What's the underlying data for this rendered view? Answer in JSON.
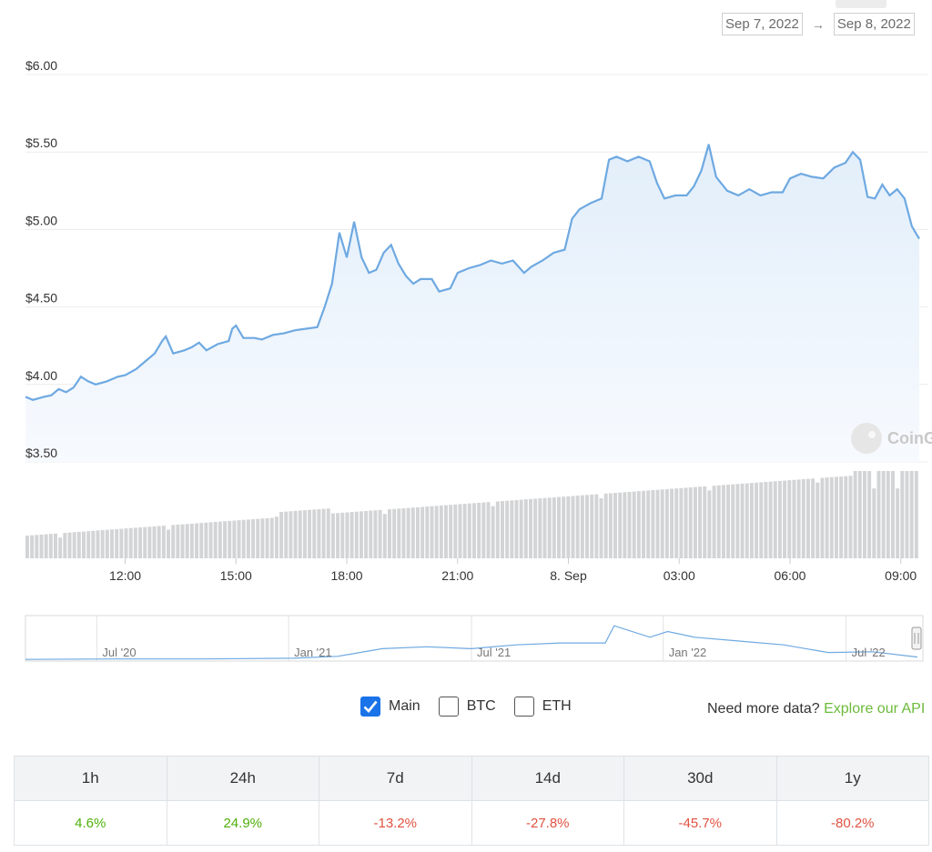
{
  "date_range": {
    "from": "Sep 7, 2022",
    "arrow": "→",
    "to": "Sep 8, 2022"
  },
  "chart_data": {
    "type": "line",
    "title": "",
    "y_ticks": [
      "$6.00",
      "$5.50",
      "$5.00",
      "$4.50",
      "$4.00",
      "$3.50"
    ],
    "ylim": [
      3.5,
      6.0
    ],
    "x_ticks": [
      "12:00",
      "15:00",
      "18:00",
      "21:00",
      "8. Sep",
      "03:00",
      "06:00",
      "09:00"
    ],
    "x_tick_hours": [
      12,
      15,
      18,
      21,
      24,
      27,
      30,
      33
    ],
    "xlim_hours": [
      9.3,
      33.5
    ],
    "watermark": "CoinGecko",
    "price_points": [
      [
        9.3,
        3.92
      ],
      [
        9.5,
        3.9
      ],
      [
        9.8,
        3.92
      ],
      [
        10.0,
        3.93
      ],
      [
        10.2,
        3.97
      ],
      [
        10.4,
        3.95
      ],
      [
        10.6,
        3.98
      ],
      [
        10.8,
        4.05
      ],
      [
        11.0,
        4.02
      ],
      [
        11.2,
        4.0
      ],
      [
        11.5,
        4.02
      ],
      [
        11.8,
        4.05
      ],
      [
        12.0,
        4.06
      ],
      [
        12.3,
        4.1
      ],
      [
        12.5,
        4.14
      ],
      [
        12.8,
        4.2
      ],
      [
        13.0,
        4.28
      ],
      [
        13.1,
        4.31
      ],
      [
        13.3,
        4.2
      ],
      [
        13.6,
        4.22
      ],
      [
        13.8,
        4.24
      ],
      [
        14.0,
        4.27
      ],
      [
        14.2,
        4.22
      ],
      [
        14.5,
        4.26
      ],
      [
        14.8,
        4.28
      ],
      [
        14.9,
        4.36
      ],
      [
        15.0,
        4.38
      ],
      [
        15.2,
        4.3
      ],
      [
        15.5,
        4.3
      ],
      [
        15.7,
        4.29
      ],
      [
        16.0,
        4.32
      ],
      [
        16.3,
        4.33
      ],
      [
        16.6,
        4.35
      ],
      [
        16.9,
        4.36
      ],
      [
        17.2,
        4.37
      ],
      [
        17.4,
        4.5
      ],
      [
        17.6,
        4.65
      ],
      [
        17.8,
        4.98
      ],
      [
        18.0,
        4.82
      ],
      [
        18.2,
        5.05
      ],
      [
        18.4,
        4.82
      ],
      [
        18.6,
        4.72
      ],
      [
        18.8,
        4.74
      ],
      [
        19.0,
        4.85
      ],
      [
        19.2,
        4.9
      ],
      [
        19.4,
        4.78
      ],
      [
        19.6,
        4.7
      ],
      [
        19.8,
        4.65
      ],
      [
        20.0,
        4.68
      ],
      [
        20.3,
        4.68
      ],
      [
        20.5,
        4.6
      ],
      [
        20.8,
        4.62
      ],
      [
        21.0,
        4.72
      ],
      [
        21.3,
        4.75
      ],
      [
        21.6,
        4.77
      ],
      [
        21.9,
        4.8
      ],
      [
        22.2,
        4.78
      ],
      [
        22.5,
        4.8
      ],
      [
        22.8,
        4.72
      ],
      [
        23.0,
        4.76
      ],
      [
        23.3,
        4.8
      ],
      [
        23.6,
        4.85
      ],
      [
        23.9,
        4.87
      ],
      [
        24.1,
        5.07
      ],
      [
        24.3,
        5.13
      ],
      [
        24.6,
        5.17
      ],
      [
        24.9,
        5.2
      ],
      [
        25.1,
        5.45
      ],
      [
        25.3,
        5.47
      ],
      [
        25.6,
        5.44
      ],
      [
        25.9,
        5.47
      ],
      [
        26.2,
        5.44
      ],
      [
        26.4,
        5.3
      ],
      [
        26.6,
        5.2
      ],
      [
        26.9,
        5.22
      ],
      [
        27.2,
        5.22
      ],
      [
        27.4,
        5.28
      ],
      [
        27.6,
        5.38
      ],
      [
        27.8,
        5.55
      ],
      [
        28.0,
        5.34
      ],
      [
        28.3,
        5.25
      ],
      [
        28.6,
        5.22
      ],
      [
        28.9,
        5.26
      ],
      [
        29.2,
        5.22
      ],
      [
        29.5,
        5.24
      ],
      [
        29.8,
        5.24
      ],
      [
        30.0,
        5.33
      ],
      [
        30.3,
        5.36
      ],
      [
        30.6,
        5.34
      ],
      [
        30.9,
        5.33
      ],
      [
        31.2,
        5.4
      ],
      [
        31.5,
        5.43
      ],
      [
        31.7,
        5.5
      ],
      [
        31.9,
        5.45
      ],
      [
        32.1,
        5.21
      ],
      [
        32.3,
        5.2
      ],
      [
        32.5,
        5.29
      ],
      [
        32.7,
        5.22
      ],
      [
        32.9,
        5.26
      ],
      [
        33.1,
        5.2
      ],
      [
        33.3,
        5.02
      ],
      [
        33.5,
        4.94
      ]
    ],
    "volume_series": "relative trading volume bars, rising from ~0.26 to ~1.0 across the day"
  },
  "navigator": {
    "labels": [
      "Jul '20",
      "Jan '21",
      "Jul '21",
      "Jan '22",
      "Jul '22"
    ],
    "points": [
      [
        0,
        0.02
      ],
      [
        0.1,
        0.03
      ],
      [
        0.2,
        0.03
      ],
      [
        0.3,
        0.05
      ],
      [
        0.35,
        0.1
      ],
      [
        0.4,
        0.3
      ],
      [
        0.45,
        0.35
      ],
      [
        0.5,
        0.3
      ],
      [
        0.55,
        0.4
      ],
      [
        0.6,
        0.45
      ],
      [
        0.65,
        0.45
      ],
      [
        0.66,
        0.9
      ],
      [
        0.7,
        0.6
      ],
      [
        0.72,
        0.75
      ],
      [
        0.75,
        0.6
      ],
      [
        0.8,
        0.5
      ],
      [
        0.85,
        0.4
      ],
      [
        0.9,
        0.2
      ],
      [
        0.95,
        0.22
      ],
      [
        1.0,
        0.08
      ]
    ]
  },
  "series_toggle": [
    {
      "label": "Main",
      "checked": true
    },
    {
      "label": "BTC",
      "checked": false
    },
    {
      "label": "ETH",
      "checked": false
    }
  ],
  "api_note": {
    "text": "Need more data?",
    "link": "Explore our API"
  },
  "performance": {
    "headers": [
      "1h",
      "24h",
      "7d",
      "14d",
      "30d",
      "1y"
    ],
    "values": [
      "4.6%",
      "24.9%",
      "-13.2%",
      "-27.8%",
      "-45.7%",
      "-80.2%"
    ]
  },
  "colors": {
    "line": "#6ea9e1",
    "fill_top": "#e4effa",
    "bar": "#d3d4d6",
    "pos": "#4eaf0a",
    "neg": "#e15241"
  }
}
